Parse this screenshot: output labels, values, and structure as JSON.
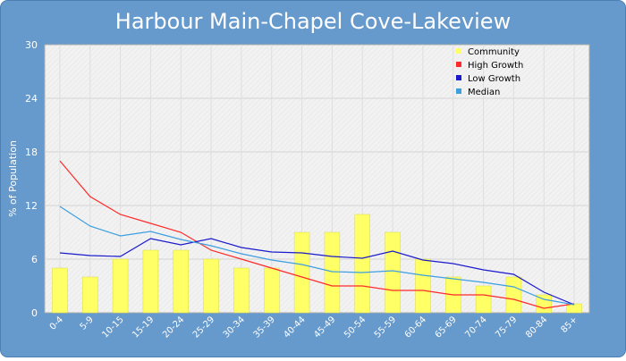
{
  "chart_data": {
    "type": "bar",
    "title": "Harbour Main-Chapel Cove-Lakeview",
    "xlabel": "",
    "ylabel": "% of Population",
    "ylim": [
      0,
      30
    ],
    "yticks": [
      0,
      6,
      12,
      18,
      24,
      30
    ],
    "grid": true,
    "legend_position": "top-right",
    "categories": [
      "0-4",
      "5-9",
      "10-15",
      "15-19",
      "20-24",
      "25-29",
      "30-34",
      "35-39",
      "40-44",
      "45-49",
      "50-54",
      "55-59",
      "60-64",
      "65-69",
      "70-74",
      "75-79",
      "80-84",
      "85+"
    ],
    "series": [
      {
        "name": "Community",
        "type": "bar",
        "color": "#ffff66",
        "values": [
          5,
          4,
          6,
          7,
          7,
          6,
          5,
          5,
          9,
          9,
          11,
          9,
          6,
          4,
          3,
          4,
          2,
          1
        ]
      },
      {
        "name": "High Growth",
        "type": "line",
        "color": "#ff2a2a",
        "values": [
          17,
          13,
          11,
          10,
          9,
          7,
          6,
          5,
          4,
          3,
          3,
          2.5,
          2.5,
          2,
          2,
          1.5,
          0.5,
          1
        ]
      },
      {
        "name": "Low Growth",
        "type": "line",
        "color": "#1a1acc",
        "values": [
          6.7,
          6.4,
          6.3,
          8.3,
          7.6,
          8.3,
          7.3,
          6.8,
          6.7,
          6.3,
          6.1,
          6.9,
          5.9,
          5.5,
          4.8,
          4.3,
          2.3,
          0.9
        ]
      },
      {
        "name": "Median",
        "type": "line",
        "color": "#3d9ee0",
        "values": [
          11.9,
          9.7,
          8.6,
          9.1,
          8.2,
          7.5,
          6.6,
          5.9,
          5.4,
          4.6,
          4.5,
          4.7,
          4.2,
          3.8,
          3.4,
          2.9,
          1.5,
          0.9
        ]
      }
    ]
  }
}
